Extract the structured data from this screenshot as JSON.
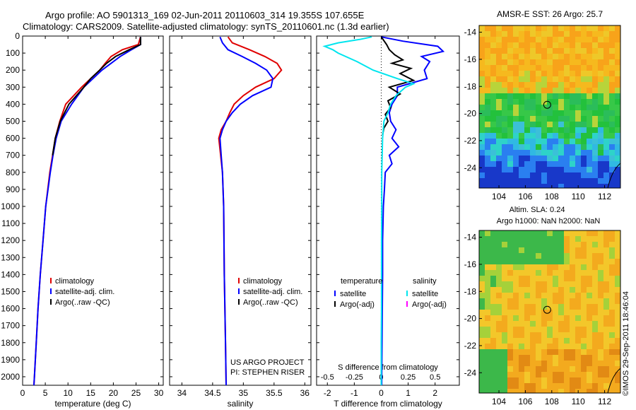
{
  "title_line1": "Argo profile: AO 5901313_169 02-Jun-2011 20110603_314 19.355S 107.655E",
  "title_line2": "Climatology: CARS2009. Satellite-adjusted climatology: synTS_20110601.nc (1.3d earlier)",
  "stamp": "©IMOS 29-Sep-2011 18:46:04",
  "colors": {
    "climatology": "#e00000",
    "satellite": "#0000ff",
    "argo": "#000000",
    "sal_satellite": "#00e5ee",
    "sal_argo": "#ff00ff"
  },
  "chart_data": [
    {
      "type": "line",
      "panel": "temperature",
      "xlabel": "temperature (deg C)",
      "xlim": [
        0,
        31
      ],
      "xticks": [
        0,
        5,
        10,
        15,
        20,
        25,
        30
      ],
      "ylim": [
        2050,
        0
      ],
      "yticks": [
        0,
        100,
        200,
        300,
        400,
        500,
        600,
        700,
        800,
        900,
        1000,
        1100,
        1200,
        1300,
        1400,
        1500,
        1600,
        1700,
        1800,
        1900,
        2000
      ],
      "legend": [
        "climatology",
        "satellite-adj. clim.",
        "Argo(..raw -QC)"
      ],
      "series": [
        {
          "name": "climatology",
          "color": "#e00000",
          "depth": [
            5,
            50,
            80,
            120,
            160,
            200,
            250,
            300,
            400,
            500,
            600,
            700,
            800,
            1000,
            1200,
            1400,
            1600,
            1800,
            2000,
            2050
          ],
          "values": [
            26,
            25.5,
            22,
            19.5,
            18.2,
            17,
            15,
            13,
            9.5,
            8.2,
            7.2,
            6.6,
            6.0,
            5.1,
            4.5,
            3.9,
            3.4,
            3.0,
            2.6,
            2.5
          ]
        },
        {
          "name": "satellite-adj. clim.",
          "color": "#0000ff",
          "depth": [
            5,
            50,
            80,
            120,
            160,
            200,
            250,
            300,
            400,
            500,
            600,
            700,
            800,
            1000,
            1200,
            1400,
            1600,
            1800,
            2000,
            2050
          ],
          "values": [
            26,
            26,
            24,
            21.5,
            19.5,
            17.5,
            15.5,
            13.5,
            10.8,
            8.5,
            7.4,
            6.7,
            6.1,
            5.1,
            4.5,
            3.9,
            3.4,
            3.0,
            2.6,
            2.5
          ]
        },
        {
          "name": "Argo(..raw -QC)",
          "color": "#000000",
          "depth": [
            5,
            50,
            80,
            120,
            160,
            200,
            250,
            300,
            400,
            500,
            600,
            700
          ],
          "values": [
            26,
            26,
            23.5,
            20.5,
            18.5,
            17,
            15,
            13.5,
            10.2,
            8.3,
            7.2,
            6.6
          ]
        }
      ],
      "annotations": []
    },
    {
      "type": "line",
      "panel": "salinity",
      "xlabel": "salinity",
      "xlim": [
        33.8,
        36.1
      ],
      "xticks": [
        34,
        34.5,
        35,
        35.5,
        36
      ],
      "ylim": [
        2050,
        0
      ],
      "legend": [
        "climatology",
        "satellite-adj. clim.",
        "Argo(..raw -QC)"
      ],
      "series": [
        {
          "name": "climatology",
          "color": "#e00000",
          "depth": [
            5,
            40,
            80,
            120,
            160,
            200,
            250,
            300,
            350,
            400,
            450,
            500,
            550,
            600,
            700,
            800,
            1000,
            1400,
            1800,
            2050
          ],
          "values": [
            34.75,
            34.82,
            35.1,
            35.35,
            35.55,
            35.62,
            35.5,
            35.2,
            35.0,
            34.85,
            34.78,
            34.72,
            34.64,
            34.6,
            34.63,
            34.66,
            34.68,
            34.69,
            34.71,
            34.72
          ]
        },
        {
          "name": "satellite-adj. clim.",
          "color": "#0000ff",
          "depth": [
            5,
            40,
            80,
            120,
            160,
            200,
            250,
            300,
            350,
            400,
            450,
            500,
            550,
            600,
            700,
            800,
            1000,
            1400,
            1800,
            2050
          ],
          "values": [
            34.62,
            34.66,
            34.75,
            34.98,
            35.2,
            35.38,
            35.48,
            35.45,
            35.15,
            34.95,
            34.82,
            34.72,
            34.66,
            34.62,
            34.64,
            34.66,
            34.68,
            34.69,
            34.71,
            34.72
          ]
        }
      ],
      "annotations": [
        "US ARGO PROJECT",
        "PI: STEPHEN RISER"
      ]
    },
    {
      "type": "line",
      "panel": "difference",
      "xlabel_bottom": "T difference from climatology",
      "xlabel_top": "S difference from climatology",
      "xlim": [
        -2.4,
        2.9
      ],
      "xticks_bottom": [
        -2,
        -1,
        0,
        1,
        2
      ],
      "xticks_top": [
        "-0.5",
        "-0.25",
        "0",
        "0.25",
        "0.5"
      ],
      "ylim": [
        2050,
        0
      ],
      "legend_left_title": "temperature",
      "legend_right_title": "salinity",
      "legend": [
        "satellite",
        "Argo(-adj)",
        "satellite",
        "Argo(-adj)"
      ],
      "series": [
        {
          "name": "satellite",
          "color": "#0000ff",
          "depth": [
            5,
            30,
            60,
            90,
            120,
            150,
            200,
            250,
            300,
            350,
            400,
            450,
            500,
            550,
            600,
            650,
            700,
            750,
            800,
            900,
            1000,
            1200,
            1400,
            1600,
            1800,
            2000,
            2050
          ],
          "values": [
            0,
            0.8,
            2.1,
            2.3,
            1.5,
            1.8,
            1.6,
            1.7,
            0.6,
            0.6,
            0.4,
            0.3,
            0.35,
            0.55,
            0.4,
            0.65,
            0.3,
            0.4,
            0.15,
            0.12,
            0.08,
            0.05,
            0.05,
            0.04,
            0.03,
            0.02,
            0.02
          ]
        },
        {
          "name": "Argo(-adj)",
          "color": "#000000",
          "depth": [
            5,
            50,
            80,
            110,
            140,
            160,
            190,
            220,
            260,
            300,
            340,
            380,
            420,
            460,
            500,
            540,
            580
          ],
          "values": [
            0,
            0.2,
            0.3,
            0.5,
            0.8,
            0.4,
            1.1,
            0.7,
            1.2,
            0.3,
            0.7,
            0.25,
            0.35,
            0.15,
            0.25,
            0.1,
            0.05
          ]
        },
        {
          "name": "satellite",
          "color": "#00e5ee",
          "depth": [
            5,
            20,
            40,
            60,
            80,
            100,
            150,
            200,
            250,
            280,
            300,
            350,
            400,
            450,
            500,
            600,
            800,
            1000,
            1200,
            1400,
            1600,
            1800,
            2000,
            2050
          ],
          "values": [
            -0.35,
            -0.8,
            -1.6,
            -2.1,
            -1.8,
            -1.6,
            -0.9,
            -0.3,
            0.6,
            1.2,
            0.9,
            0.55,
            0.35,
            0.25,
            0.1,
            0.05,
            0.02,
            0.02,
            0.01,
            0.01,
            0.01,
            0.0,
            0.0,
            0.0
          ]
        }
      ],
      "annotations": []
    },
    {
      "type": "heatmap",
      "panel": "sst_map",
      "title": "AMSR-E SST: 26 Argo: 25.7",
      "xlim": [
        102.5,
        113.2
      ],
      "ylim": [
        -25.5,
        -13.5
      ],
      "xticks": [
        104,
        106,
        108,
        110,
        112
      ],
      "yticks": [
        -14,
        -16,
        -18,
        -20,
        -22,
        -24
      ],
      "marker": [
        107.655,
        -19.355
      ]
    },
    {
      "type": "heatmap",
      "panel": "sla_map",
      "title_line1": "Altim. SLA: 0.24",
      "title_line2": "Argo h1000: NaN h2000: NaN",
      "xlim": [
        102.5,
        113.2
      ],
      "ylim": [
        -25.5,
        -13.5
      ],
      "xticks": [
        104,
        106,
        108,
        110,
        112
      ],
      "yticks": [
        -14,
        -16,
        -18,
        -20,
        -22,
        -24
      ],
      "marker": [
        107.655,
        -19.355
      ]
    }
  ]
}
